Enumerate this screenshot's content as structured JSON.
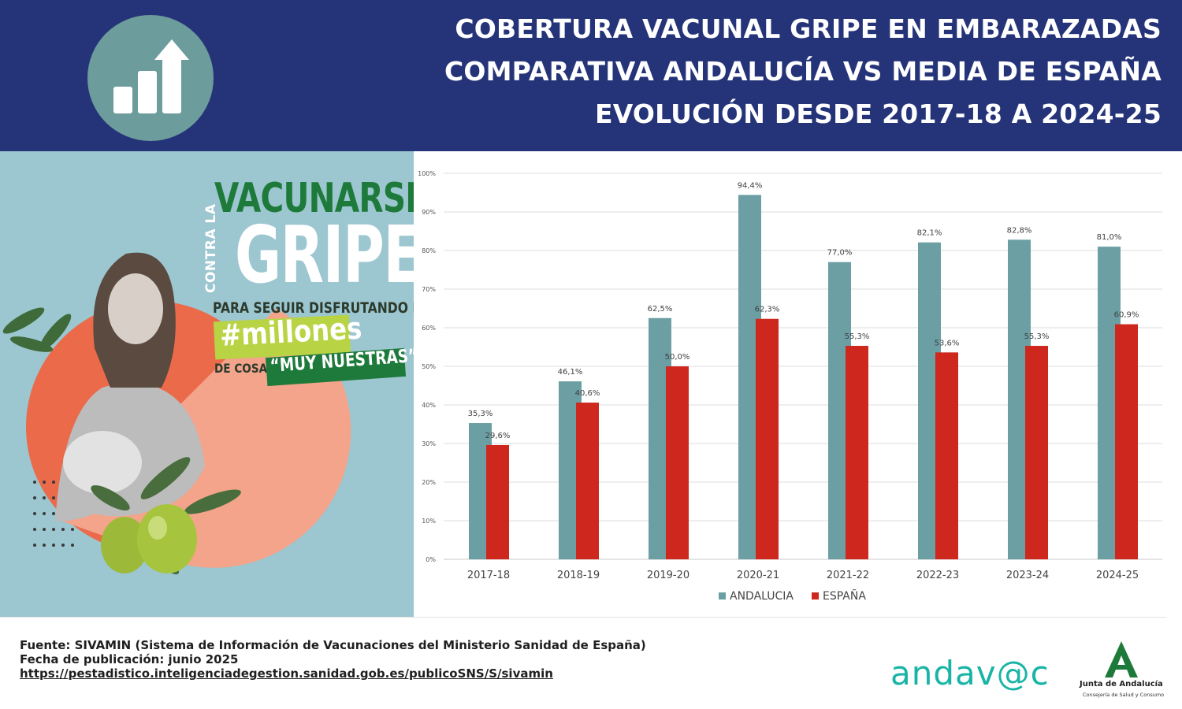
{
  "header": {
    "title_lines": [
      "COBERTURA VACUNAL GRIPE EN EMBARAZADAS",
      "COMPARATIVA ANDALUCÍA VS MEDIA DE ESPAÑA",
      "EVOLUCIÓN DESDE 2017-18 A 2024-25"
    ],
    "icon": "bar-chart-growth-icon"
  },
  "campaign": {
    "vacunarse": "VACUNARSE",
    "contra": "CONTRA LA",
    "gripe": "GRIPE",
    "para": "PARA SEGUIR DISFRUTANDO DE",
    "millones": "#millones",
    "de_cosas": "DE COSAS",
    "nuestras": "“MUY NUESTRAS”"
  },
  "chart_data": {
    "type": "bar",
    "categories": [
      "2017-18",
      "2018-19",
      "2019-20",
      "2020-21",
      "2021-22",
      "2022-23",
      "2023-24",
      "2024-25"
    ],
    "series": [
      {
        "name": "ANDALUCIA",
        "color": "#6b9fa3",
        "values": [
          35.3,
          46.1,
          62.5,
          94.4,
          77.0,
          82.1,
          82.8,
          81.0
        ],
        "labels": [
          "35,3%",
          "46,1%",
          "62,5%",
          "94,4%",
          "77,0%",
          "82,1%",
          "82,8%",
          "81,0%"
        ]
      },
      {
        "name": "ESPAÑA",
        "color": "#cd271e",
        "values": [
          29.6,
          40.6,
          50.0,
          62.3,
          55.3,
          53.6,
          55.3,
          60.9
        ],
        "labels": [
          "29,6%",
          "40,6%",
          "50,0%",
          "62,3%",
          "55,3%",
          "53,6%",
          "55,3%",
          "60,9%"
        ]
      }
    ],
    "ylim": [
      0,
      100
    ],
    "yticks": [
      "0%",
      "10%",
      "20%",
      "30%",
      "40%",
      "50%",
      "60%",
      "70%",
      "80%",
      "90%",
      "100%"
    ],
    "grid": true,
    "legend": "bottom",
    "title": "",
    "xlabel": "",
    "ylabel": ""
  },
  "footer": {
    "source": "Fuente: SIVAMIN (Sistema de Información de Vacunaciones del Ministerio Sanidad de España)",
    "date": "Fecha de publicación: junio 2025",
    "url": "https://pestadistico.inteligenciadegestion.sanidad.gob.es/publicoSNS/S/sivamin"
  },
  "logos": {
    "andavac": "andav@c",
    "junta_name": "Junta de Andalucía",
    "junta_dept": "Consejería de Salud y Consumo"
  }
}
